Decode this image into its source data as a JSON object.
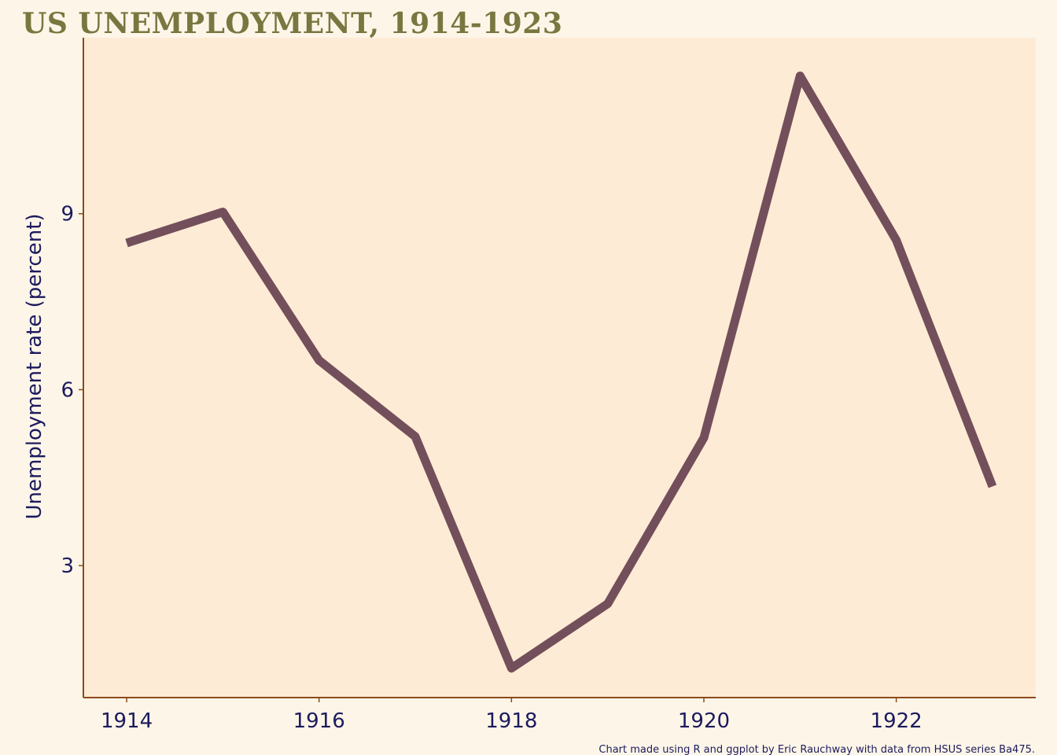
{
  "chart_data": {
    "type": "line",
    "title": "US UNEMPLOYMENT, 1914-1923",
    "xlabel": "",
    "ylabel": "Unemployment rate (percent)",
    "caption": "Chart made using R and ggplot by Eric Rauchway with data from HSUS series Ba475.",
    "x": [
      1914,
      1915,
      1916,
      1917,
      1918,
      1919,
      1920,
      1921,
      1922,
      1923
    ],
    "series": [
      {
        "values": [
          8.5,
          9.03,
          6.5,
          5.2,
          1.25,
          2.35,
          5.18,
          11.35,
          8.55,
          4.35
        ]
      }
    ],
    "xlim": [
      1913.55,
      1923.45
    ],
    "ylim": [
      0.75,
      12.0
    ],
    "xticks": [
      "1914",
      "1916",
      "1918",
      "1920",
      "1922"
    ],
    "yticks": [
      "3",
      "6",
      "9"
    ],
    "grid": false,
    "legend": "none",
    "colors": {
      "page_background": "#fdf6e8",
      "panel_background": "#fdebd6",
      "line": "#734f5b",
      "axis": "#8b4a1c",
      "title": "#7a7640",
      "text": "#1d1a5e"
    }
  }
}
